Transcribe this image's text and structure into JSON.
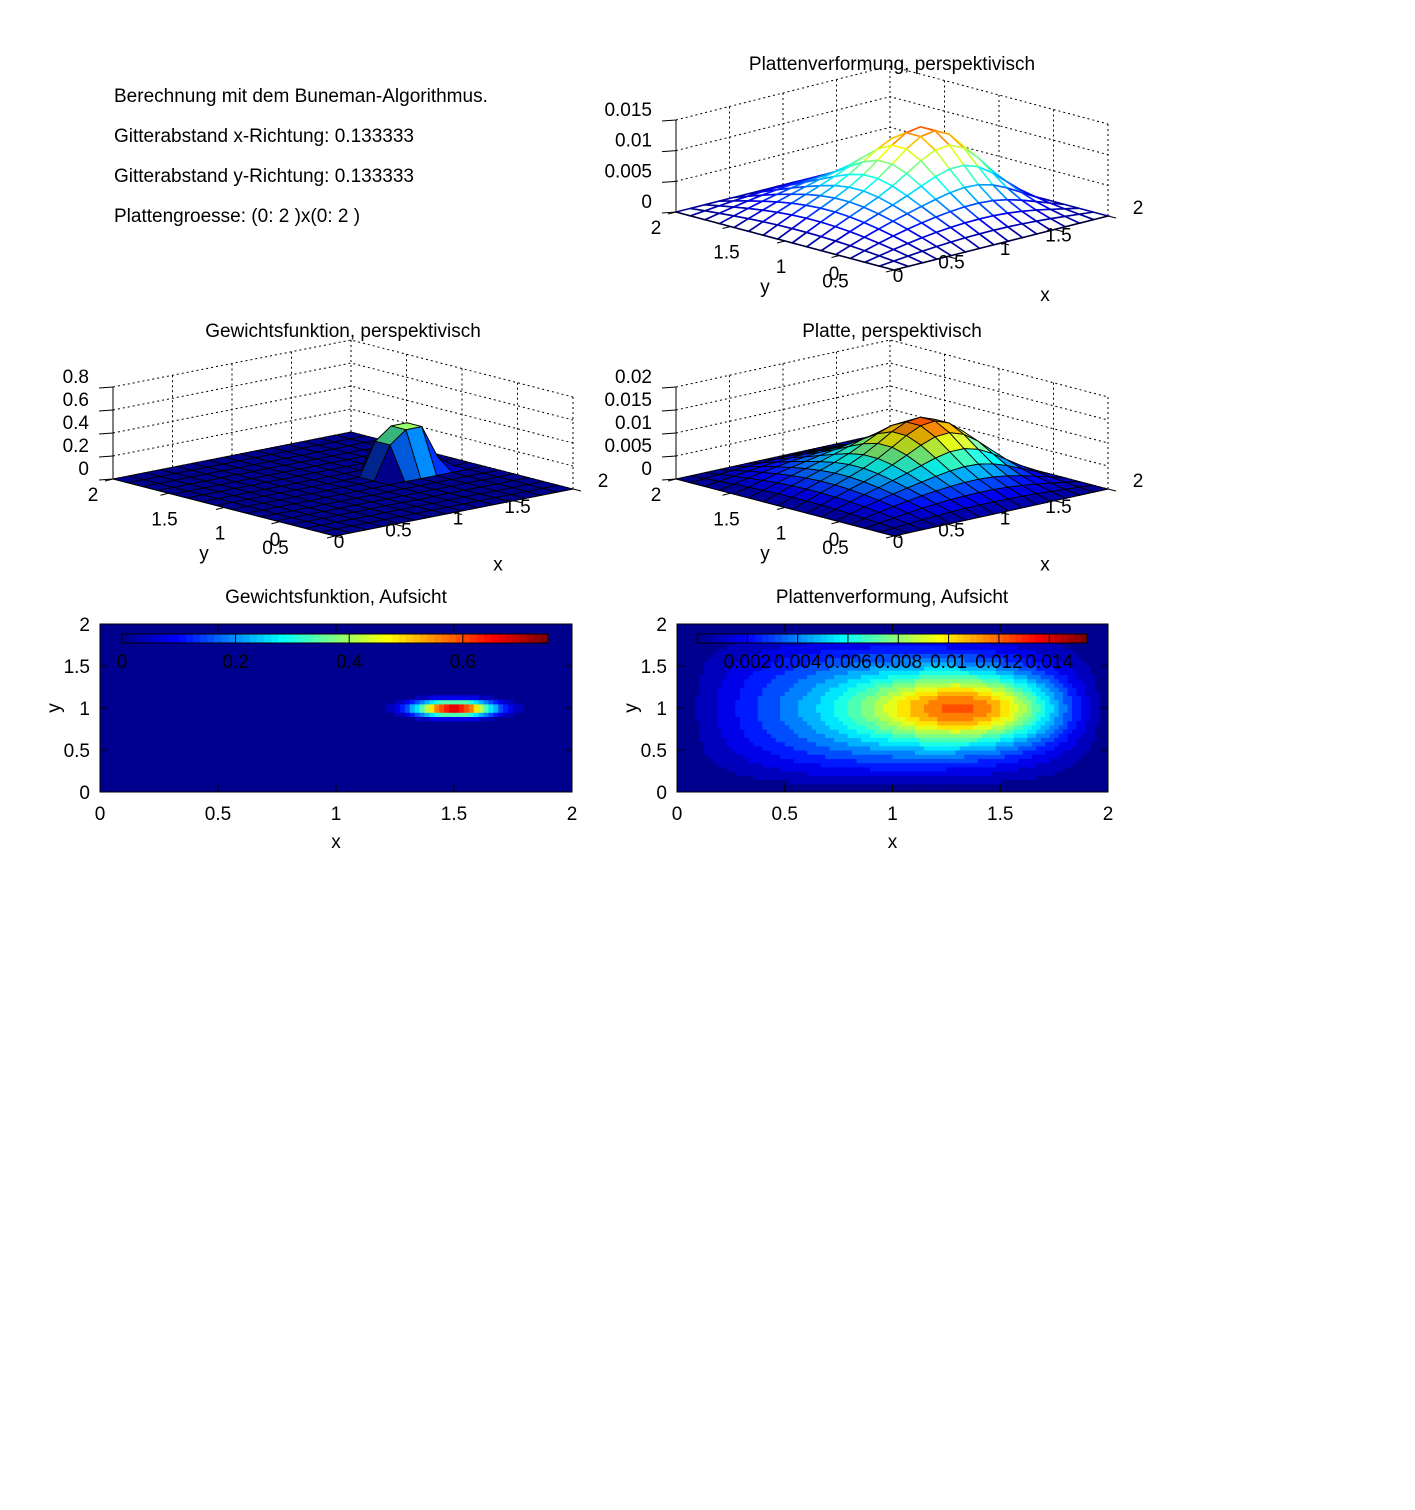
{
  "info": {
    "line1": "Berechnung mit dem Buneman-Algorithmus.",
    "line2": "Gitterabstand x-Richtung:  0.133333",
    "line3": "Gitterabstand y-Richtung:  0.133333",
    "line4": "Plattengroesse: (0: 2 )x(0: 2 )"
  },
  "colormap": [
    "#00008f",
    "#0000ff",
    "#0080ff",
    "#00ffff",
    "#80ff80",
    "#ffff00",
    "#ff8000",
    "#ff0000",
    "#800000"
  ],
  "chart_data": [
    {
      "id": "mesh-verformung",
      "type": "surface-mesh",
      "title": "Plattenverformung, perspektivisch",
      "xlabel": "x",
      "ylabel": "y",
      "xlim": [
        0,
        2
      ],
      "ylim": [
        0,
        2
      ],
      "zlim": [
        0,
        0.015
      ],
      "xticks": [
        "0",
        "0.5",
        "1",
        "1.5",
        "2"
      ],
      "yticks": [
        "0",
        "0.5",
        "1",
        "1.5",
        "2"
      ],
      "zticks": [
        "0",
        "0.005",
        "0.01",
        "0.015"
      ],
      "grid_n": 15,
      "peak": {
        "x": 1.5,
        "y": 1.0,
        "z": 0.0155
      }
    },
    {
      "id": "surf-gewicht",
      "type": "surface",
      "title": "Gewichtsfunktion, perspektivisch",
      "xlabel": "x",
      "ylabel": "y",
      "xlim": [
        0,
        2
      ],
      "ylim": [
        0,
        2
      ],
      "zlim": [
        0,
        0.8
      ],
      "xticks": [
        "0",
        "0.5",
        "1",
        "1.5",
        "2"
      ],
      "yticks": [
        "0",
        "0.5",
        "1",
        "1.5",
        "2"
      ],
      "zticks": [
        "0",
        "0.2",
        "0.4",
        "0.6",
        "0.8"
      ],
      "grid_n": 15,
      "peak": {
        "x": 1.5,
        "y": 1.0,
        "z": 0.75
      }
    },
    {
      "id": "surf-platte",
      "type": "surface",
      "title": "Platte, perspektivisch",
      "xlabel": "x",
      "ylabel": "y",
      "xlim": [
        0,
        2
      ],
      "ylim": [
        0,
        2
      ],
      "zlim": [
        0,
        0.02
      ],
      "xticks": [
        "0",
        "0.5",
        "1",
        "1.5",
        "2"
      ],
      "yticks": [
        "0",
        "0.5",
        "1",
        "1.5",
        "2"
      ],
      "zticks": [
        "0",
        "0.005",
        "0.01",
        "0.015",
        "0.02"
      ],
      "grid_n": 15,
      "peak": {
        "x": 1.5,
        "y": 1.0,
        "z": 0.0155
      }
    },
    {
      "id": "contour-gewicht",
      "type": "heatmap",
      "title": "Gewichtsfunktion, Aufsicht",
      "xlabel": "x",
      "ylabel": "y",
      "xlim": [
        0,
        2
      ],
      "ylim": [
        0,
        2
      ],
      "xticks": [
        "0",
        "0.5",
        "1",
        "1.5",
        "2"
      ],
      "yticks": [
        "0",
        "0.5",
        "1",
        "1.5",
        "2"
      ],
      "colorbar_ticks": [
        "0",
        "0.2",
        "0.4",
        "0.6"
      ],
      "colorbar_range": [
        0,
        0.75
      ],
      "peak": {
        "x": 1.5,
        "y": 1.0,
        "z": 0.75
      }
    },
    {
      "id": "contour-verformung",
      "type": "heatmap",
      "title": "Plattenverformung, Aufsicht",
      "xlabel": "x",
      "ylabel": "y",
      "xlim": [
        0,
        2
      ],
      "ylim": [
        0,
        2
      ],
      "xticks": [
        "0",
        "0.5",
        "1",
        "1.5",
        "2"
      ],
      "yticks": [
        "0",
        "0.5",
        "1",
        "1.5",
        "2"
      ],
      "colorbar_ticks": [
        "0.002",
        "0.004",
        "0.006",
        "0.008",
        "0.01",
        "0.012",
        "0.014"
      ],
      "colorbar_range": [
        0,
        0.0155
      ],
      "peak": {
        "x": 1.5,
        "y": 1.0,
        "z": 0.0155
      }
    }
  ]
}
